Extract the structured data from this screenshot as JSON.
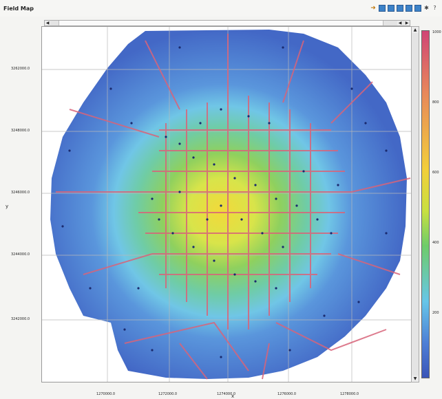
{
  "window": {
    "title": "Field Map"
  },
  "toolbar": {
    "icons": [
      "arrow-icon",
      "view1-icon",
      "view2-icon",
      "view3-icon",
      "view4-icon",
      "view5-icon",
      "settings-icon",
      "help-icon"
    ]
  },
  "map": {
    "y_ticks": [
      "3262000.0",
      "3248000.0",
      "3246000.0",
      "3244000.0",
      "3242000.0"
    ],
    "x_ticks": [
      "1270000.0",
      "1272000.0",
      "1274000.0",
      "1276000.0",
      "1278000.0"
    ],
    "x_axis_label": "x",
    "y_axis_label": "y",
    "colorbar_ticks": [
      "1000",
      "800",
      "600",
      "400",
      "200"
    ],
    "colors": {
      "low": "#3b55b8",
      "mid": "#6ecc6a",
      "high": "#f2cf3a",
      "peak": "#d04575",
      "roads": "#d8647a",
      "stations": "#1a2a6e"
    }
  }
}
